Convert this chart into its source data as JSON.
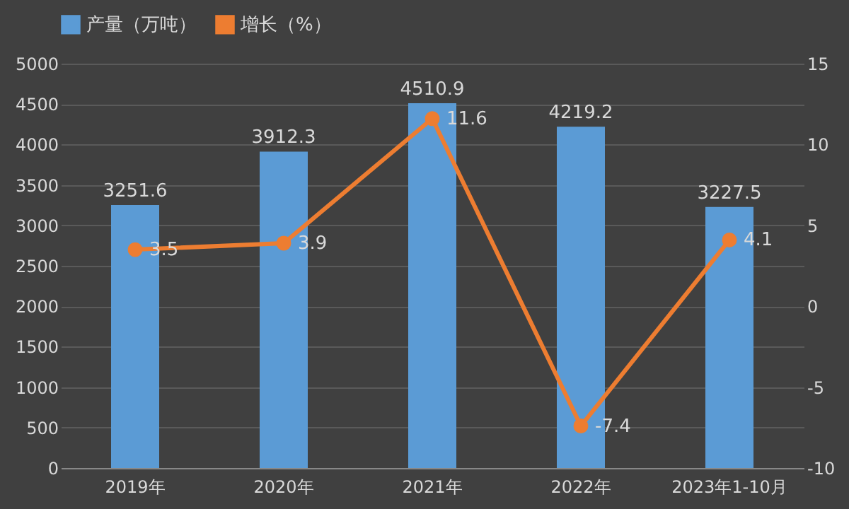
{
  "chart_data": {
    "type": "bar",
    "categories": [
      "2019年",
      "2020年",
      "2021年",
      "2022年",
      "2023年1-10月"
    ],
    "series": [
      {
        "name": "产量（万吨）",
        "color": "#5b9bd5",
        "values": [
          3251.6,
          3912.3,
          4510.9,
          4219.2,
          3227.5
        ]
      },
      {
        "name": "增长（%）",
        "type": "line",
        "axis": "y2",
        "color": "#ed7d31",
        "marker": "circle",
        "values": [
          3.5,
          3.9,
          11.6,
          -7.4,
          4.1
        ]
      }
    ],
    "ylim": [
      0,
      5000
    ],
    "yticks": [
      0,
      500,
      1000,
      1500,
      2000,
      2500,
      3000,
      3500,
      4000,
      4500,
      5000
    ],
    "y2lim": [
      -10,
      15
    ],
    "y2ticks": [
      -10,
      -5,
      0,
      5,
      10,
      15
    ],
    "data_labels": true,
    "grid": "y",
    "legend": "top"
  }
}
